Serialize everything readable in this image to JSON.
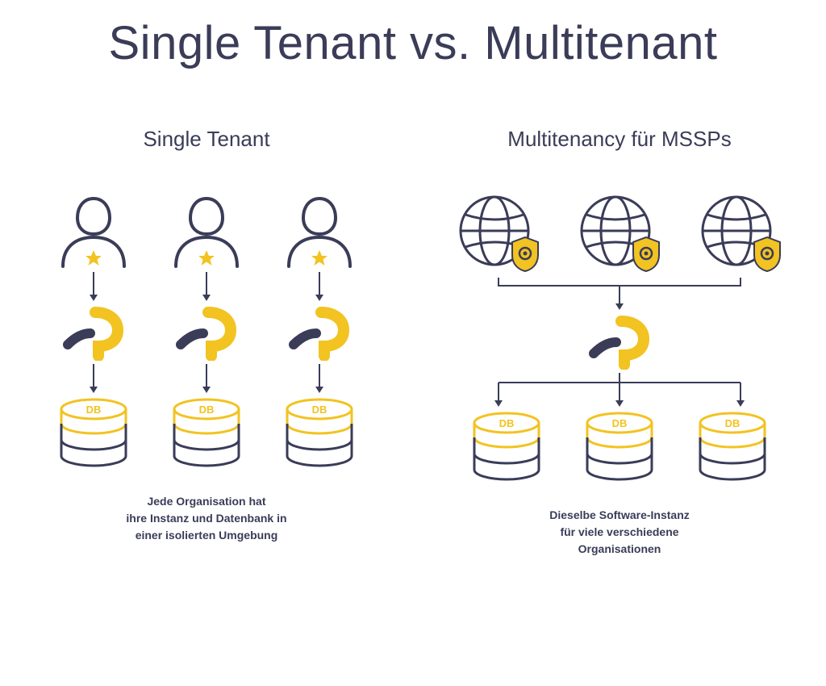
{
  "title": "Single Tenant vs. Multitenant",
  "colors": {
    "text": "#3a3c58",
    "outline": "#3a3c58",
    "accent": "#f2c321",
    "arrow": "#3a3c58"
  },
  "stroke_width": 3,
  "left": {
    "title": "Single Tenant",
    "caption": "Jede Organisation hat\nihre Instanz und Datenbank in\neiner isolierten Umgebung",
    "db_label": "DB",
    "count": 3
  },
  "right": {
    "title": "Multitenancy für MSSPs",
    "caption": "Dieselbe Software-Instanz\nfür viele verschiedene\nOrganisationen",
    "db_label": "DB",
    "count": 3
  }
}
